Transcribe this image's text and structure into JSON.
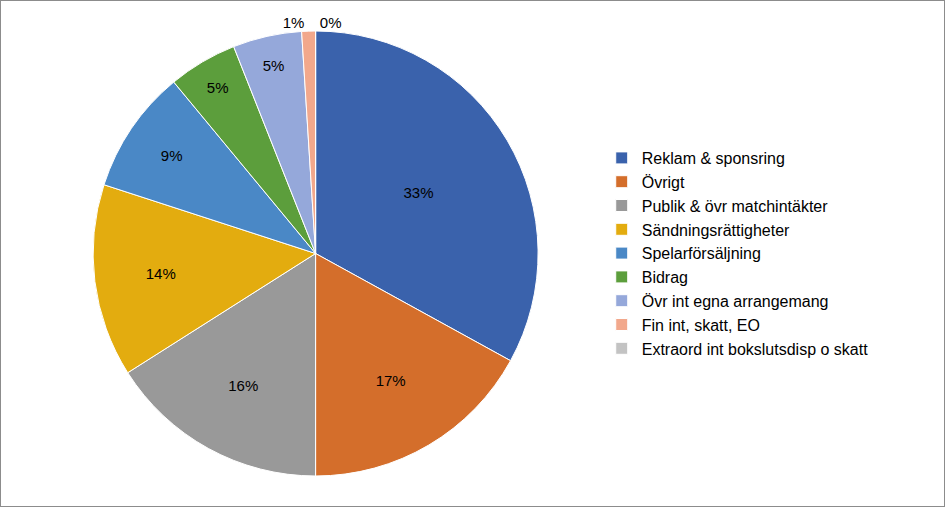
{
  "chart_data": {
    "type": "pie",
    "categories": [
      "Reklam & sponsring",
      "Övrigt",
      "Publik & övr matchintäkter",
      "Sändningsrättigheter",
      "Spelarförsäljning",
      "Bidrag",
      "Övr int egna arrangemang",
      "Fin int, skatt, EO",
      "Extraord int bokslutsdisp o skatt"
    ],
    "values": [
      33,
      17,
      16,
      14,
      9,
      5,
      5,
      1,
      0
    ],
    "value_labels": [
      "33%",
      "17%",
      "16%",
      "14%",
      "9%",
      "5%",
      "5%",
      "1%",
      "0%"
    ],
    "colors": [
      "#3a62ac",
      "#d46e2b",
      "#999999",
      "#e3ac0f",
      "#4a88c6",
      "#5c9e3c",
      "#95a8da",
      "#f2a88c",
      "#c3c3c3"
    ],
    "data_labels": true,
    "legend": "right"
  }
}
